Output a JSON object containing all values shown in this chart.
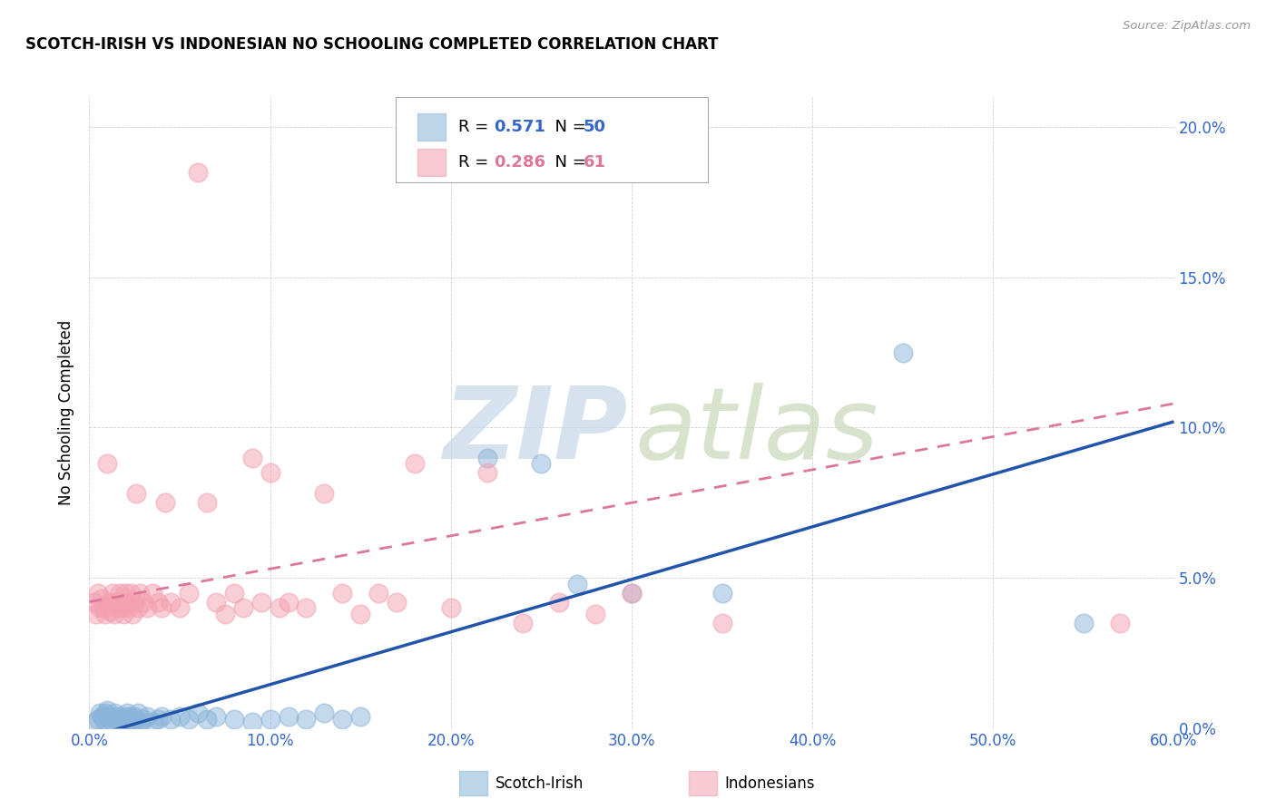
{
  "title": "SCOTCH-IRISH VS INDONESIAN NO SCHOOLING COMPLETED CORRELATION CHART",
  "source": "Source: ZipAtlas.com",
  "ylabel": "No Schooling Completed",
  "blue_color": "#8ab4d9",
  "pink_color": "#f4a0b0",
  "blue_line_color": "#2255aa",
  "pink_line_color": "#dd7799",
  "xlim": [
    0,
    60
  ],
  "ylim": [
    0,
    21
  ],
  "x_tick_vals": [
    0,
    10,
    20,
    30,
    40,
    50,
    60
  ],
  "y_tick_vals": [
    0,
    5,
    10,
    15,
    20
  ],
  "xlabel_ticks": [
    "0.0%",
    "10.0%",
    "20.0%",
    "30.0%",
    "40.0%",
    "50.0%",
    "60.0%"
  ],
  "ylabel_ticks": [
    "0.0%",
    "5.0%",
    "10.0%",
    "15.0%",
    "20.0%"
  ],
  "scotch_irish_points": [
    [
      0.3,
      0.2
    ],
    [
      0.5,
      0.3
    ],
    [
      0.6,
      0.5
    ],
    [
      0.7,
      0.4
    ],
    [
      0.8,
      0.3
    ],
    [
      0.9,
      0.5
    ],
    [
      1.0,
      0.6
    ],
    [
      1.1,
      0.4
    ],
    [
      1.2,
      0.3
    ],
    [
      1.3,
      0.2
    ],
    [
      1.4,
      0.5
    ],
    [
      1.5,
      0.3
    ],
    [
      1.6,
      0.4
    ],
    [
      1.7,
      0.2
    ],
    [
      1.8,
      0.3
    ],
    [
      1.9,
      0.4
    ],
    [
      2.0,
      0.3
    ],
    [
      2.1,
      0.5
    ],
    [
      2.2,
      0.4
    ],
    [
      2.3,
      0.3
    ],
    [
      2.4,
      0.2
    ],
    [
      2.5,
      0.4
    ],
    [
      2.6,
      0.3
    ],
    [
      2.7,
      0.5
    ],
    [
      2.8,
      0.2
    ],
    [
      3.0,
      0.3
    ],
    [
      3.2,
      0.4
    ],
    [
      3.5,
      0.2
    ],
    [
      3.8,
      0.3
    ],
    [
      4.0,
      0.4
    ],
    [
      4.5,
      0.3
    ],
    [
      5.0,
      0.4
    ],
    [
      5.5,
      0.3
    ],
    [
      6.0,
      0.5
    ],
    [
      6.5,
      0.3
    ],
    [
      7.0,
      0.4
    ],
    [
      8.0,
      0.3
    ],
    [
      9.0,
      0.2
    ],
    [
      10.0,
      0.3
    ],
    [
      11.0,
      0.4
    ],
    [
      12.0,
      0.3
    ],
    [
      13.0,
      0.5
    ],
    [
      14.0,
      0.3
    ],
    [
      15.0,
      0.4
    ],
    [
      22.0,
      9.0
    ],
    [
      25.0,
      8.8
    ],
    [
      27.0,
      4.8
    ],
    [
      30.0,
      4.5
    ],
    [
      35.0,
      4.5
    ],
    [
      45.0,
      12.5
    ],
    [
      55.0,
      3.5
    ]
  ],
  "indonesian_points": [
    [
      0.3,
      4.2
    ],
    [
      0.4,
      3.8
    ],
    [
      0.5,
      4.5
    ],
    [
      0.6,
      4.0
    ],
    [
      0.7,
      4.3
    ],
    [
      0.8,
      4.0
    ],
    [
      0.9,
      3.8
    ],
    [
      1.0,
      8.8
    ],
    [
      1.1,
      4.2
    ],
    [
      1.2,
      3.9
    ],
    [
      1.3,
      4.5
    ],
    [
      1.4,
      3.8
    ],
    [
      1.5,
      4.2
    ],
    [
      1.6,
      4.0
    ],
    [
      1.7,
      4.5
    ],
    [
      1.8,
      4.0
    ],
    [
      1.9,
      3.8
    ],
    [
      2.0,
      4.5
    ],
    [
      2.1,
      4.2
    ],
    [
      2.2,
      4.0
    ],
    [
      2.3,
      4.5
    ],
    [
      2.4,
      3.8
    ],
    [
      2.5,
      4.2
    ],
    [
      2.6,
      7.8
    ],
    [
      2.7,
      4.0
    ],
    [
      2.8,
      4.5
    ],
    [
      3.0,
      4.2
    ],
    [
      3.2,
      4.0
    ],
    [
      3.5,
      4.5
    ],
    [
      3.8,
      4.2
    ],
    [
      4.0,
      4.0
    ],
    [
      4.2,
      7.5
    ],
    [
      4.5,
      4.2
    ],
    [
      5.0,
      4.0
    ],
    [
      5.5,
      4.5
    ],
    [
      6.0,
      18.5
    ],
    [
      6.5,
      7.5
    ],
    [
      7.0,
      4.2
    ],
    [
      7.5,
      3.8
    ],
    [
      8.0,
      4.5
    ],
    [
      8.5,
      4.0
    ],
    [
      9.0,
      9.0
    ],
    [
      9.5,
      4.2
    ],
    [
      10.0,
      8.5
    ],
    [
      10.5,
      4.0
    ],
    [
      11.0,
      4.2
    ],
    [
      12.0,
      4.0
    ],
    [
      13.0,
      7.8
    ],
    [
      14.0,
      4.5
    ],
    [
      15.0,
      3.8
    ],
    [
      16.0,
      4.5
    ],
    [
      17.0,
      4.2
    ],
    [
      18.0,
      8.8
    ],
    [
      20.0,
      4.0
    ],
    [
      22.0,
      8.5
    ],
    [
      24.0,
      3.5
    ],
    [
      26.0,
      4.2
    ],
    [
      28.0,
      3.8
    ],
    [
      30.0,
      4.5
    ],
    [
      35.0,
      3.5
    ],
    [
      57.0,
      3.5
    ]
  ],
  "blue_trend": [
    0.0,
    -0.3,
    60.0,
    10.2
  ],
  "pink_trend": [
    0.0,
    4.2,
    60.0,
    10.8
  ],
  "watermark_zip_color": "#c5d8e8",
  "watermark_atlas_color": "#c8d8b8"
}
